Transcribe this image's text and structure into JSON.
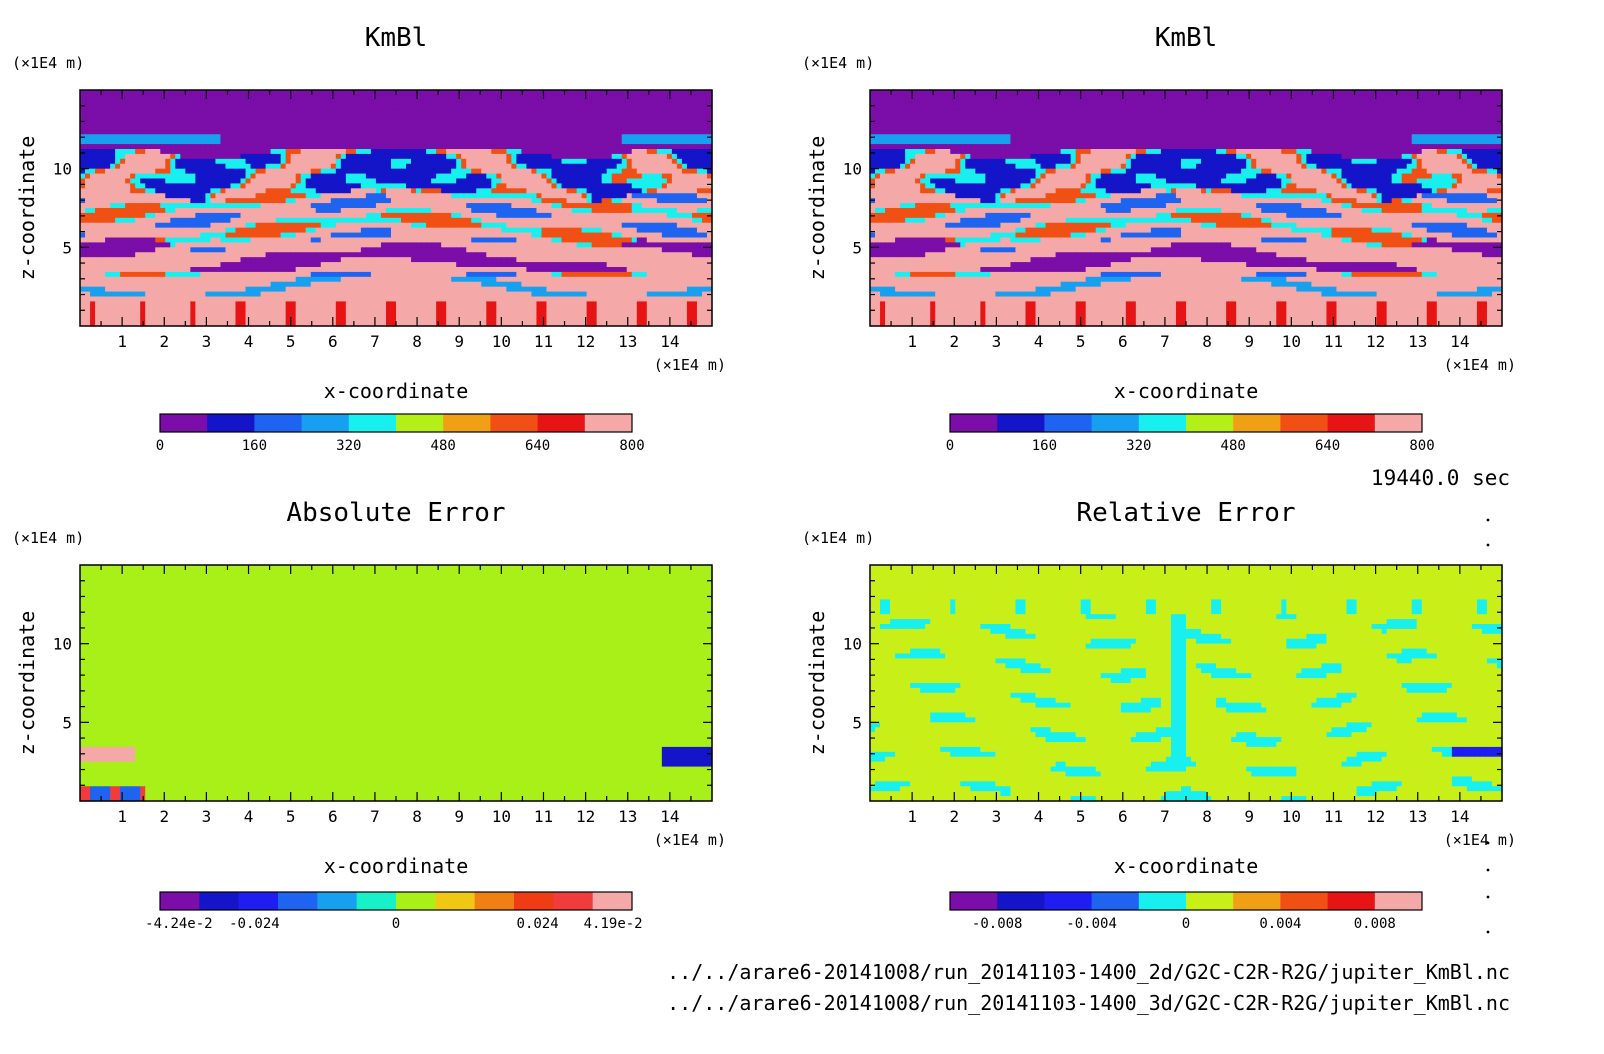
{
  "time_label": "19440.0 sec",
  "files": [
    "../../arare6-20141008/run_20141103-1400_2d/G2C-C2R-R2G/jupiter_KmBl.nc",
    "../../arare6-20141008/run_20141103-1400_3d/G2C-C2R-R2G/jupiter_KmBl.nc"
  ],
  "chart_data": [
    {
      "type": "heatmap",
      "title": "KmBl",
      "xlabel": "x-coordinate",
      "ylabel": "z-coordinate",
      "x_unit": "(×1E4 m)",
      "y_unit": "(×1E4 m)",
      "xlim": [
        0,
        15
      ],
      "ylim": [
        0,
        15
      ],
      "xticks": [
        "1",
        "2",
        "3",
        "4",
        "5",
        "6",
        "7",
        "8",
        "9",
        "10",
        "11",
        "12",
        "13",
        "14"
      ],
      "yticks": [
        "5",
        "10"
      ],
      "colorbar": {
        "colors": [
          "#7b0da8",
          "#1414c8",
          "#1e64f0",
          "#18a0f0",
          "#18f0f0",
          "#b4f018",
          "#f0a014",
          "#f05014",
          "#e61414",
          "#f5a8a8"
        ],
        "labels": [
          "0",
          "160",
          "320",
          "480",
          "640",
          "800"
        ],
        "range": [
          0,
          800
        ]
      },
      "field": "kmbl"
    },
    {
      "type": "heatmap",
      "title": "KmBl",
      "xlabel": "x-coordinate",
      "ylabel": "z-coordinate",
      "x_unit": "(×1E4 m)",
      "y_unit": "(×1E4 m)",
      "xlim": [
        0,
        15
      ],
      "ylim": [
        0,
        15
      ],
      "xticks": [
        "1",
        "2",
        "3",
        "4",
        "5",
        "6",
        "7",
        "8",
        "9",
        "10",
        "11",
        "12",
        "13",
        "14"
      ],
      "yticks": [
        "5",
        "10"
      ],
      "colorbar": {
        "colors": [
          "#7b0da8",
          "#1414c8",
          "#1e64f0",
          "#18a0f0",
          "#18f0f0",
          "#b4f018",
          "#f0a014",
          "#f05014",
          "#e61414",
          "#f5a8a8"
        ],
        "labels": [
          "0",
          "160",
          "320",
          "480",
          "640",
          "800"
        ],
        "range": [
          0,
          800
        ]
      },
      "field": "kmbl"
    },
    {
      "type": "heatmap",
      "title": "Absolute Error",
      "xlabel": "x-coordinate",
      "ylabel": "z-coordinate",
      "x_unit": "(×1E4 m)",
      "y_unit": "(×1E4 m)",
      "xlim": [
        0,
        15
      ],
      "ylim": [
        0,
        15
      ],
      "xticks": [
        "1",
        "2",
        "3",
        "4",
        "5",
        "6",
        "7",
        "8",
        "9",
        "10",
        "11",
        "12",
        "13",
        "14"
      ],
      "yticks": [
        "5",
        "10"
      ],
      "colorbar": {
        "colors": [
          "#7b0da8",
          "#1414c8",
          "#1e1ef0",
          "#1e64f0",
          "#18a0f0",
          "#18f0c8",
          "#a8f018",
          "#f0c814",
          "#f08014",
          "#f03c14",
          "#f03c3c",
          "#f5a8a8"
        ],
        "labels": [
          "-4.24e-2",
          "-0.024",
          "0",
          "0.024",
          "4.19e-2"
        ],
        "range": [
          -0.0424,
          0.0419
        ]
      },
      "field": "abs"
    },
    {
      "type": "heatmap",
      "title": "Relative Error",
      "xlabel": "x-coordinate",
      "ylabel": "z-coordinate",
      "x_unit": "(×1E4 m)",
      "y_unit": "(×1E4 m)",
      "xlim": [
        0,
        15
      ],
      "ylim": [
        0,
        15
      ],
      "xticks": [
        "1",
        "2",
        "3",
        "4",
        "5",
        "6",
        "7",
        "8",
        "9",
        "10",
        "11",
        "12",
        "13",
        "14"
      ],
      "yticks": [
        "5",
        "10"
      ],
      "colorbar": {
        "colors": [
          "#7b0da8",
          "#1414c8",
          "#1e1ef0",
          "#1e64f0",
          "#18f0f0",
          "#c8f018",
          "#f0a014",
          "#f05014",
          "#e61414",
          "#f5a8a8"
        ],
        "labels": [
          "-0.008",
          "-0.004",
          "0",
          "0.004",
          "0.008"
        ],
        "range": [
          -0.01,
          0.01
        ]
      },
      "field": "rel"
    }
  ]
}
